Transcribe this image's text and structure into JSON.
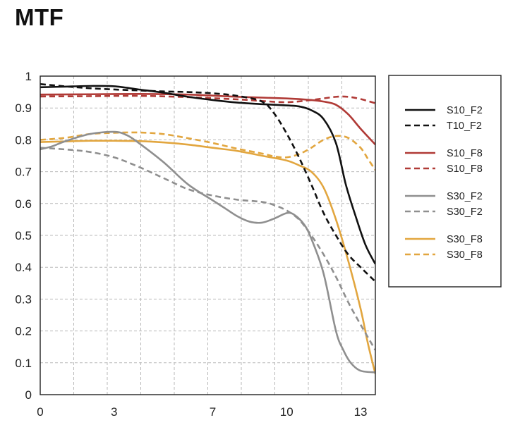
{
  "title": "MTF",
  "chart_data": {
    "type": "line",
    "title": "MTF",
    "xlabel": "",
    "ylabel": "",
    "xlim": [
      0,
      13.6
    ],
    "ylim": [
      0,
      1
    ],
    "grid": true,
    "legend_position": "right",
    "x_ticks": [
      0,
      3,
      7,
      10,
      13
    ],
    "x_tick_labels": [
      "0",
      "3",
      "7",
      "10",
      "13"
    ],
    "y_ticks": [
      0,
      0.1,
      0.2,
      0.3,
      0.4,
      0.5,
      0.6,
      0.7,
      0.8,
      0.9,
      1
    ],
    "y_tick_labels": [
      "0",
      "0.1",
      "0.2",
      "0.3",
      "0.4",
      "0.5",
      "0.6",
      "0.7",
      "0.8",
      "0.9",
      "1"
    ],
    "series": [
      {
        "name": "S10_F2",
        "color": "#111111",
        "dash": false,
        "points": [
          [
            0,
            0.965
          ],
          [
            1,
            0.967
          ],
          [
            2,
            0.969
          ],
          [
            3,
            0.968
          ],
          [
            4,
            0.958
          ],
          [
            5,
            0.948
          ],
          [
            6,
            0.935
          ],
          [
            7,
            0.925
          ],
          [
            8,
            0.917
          ],
          [
            9,
            0.912
          ],
          [
            10,
            0.908
          ],
          [
            10.5,
            0.905
          ],
          [
            11,
            0.893
          ],
          [
            11.5,
            0.865
          ],
          [
            12,
            0.79
          ],
          [
            12.4,
            0.66
          ],
          [
            12.8,
            0.56
          ],
          [
            13.2,
            0.47
          ],
          [
            13.6,
            0.41
          ]
        ]
      },
      {
        "name": "T10_F2",
        "color": "#111111",
        "dash": true,
        "points": [
          [
            0,
            0.975
          ],
          [
            1,
            0.968
          ],
          [
            2,
            0.962
          ],
          [
            3,
            0.958
          ],
          [
            4,
            0.955
          ],
          [
            5,
            0.952
          ],
          [
            6,
            0.95
          ],
          [
            7,
            0.946
          ],
          [
            8,
            0.938
          ],
          [
            9,
            0.92
          ],
          [
            9.5,
            0.882
          ],
          [
            10,
            0.82
          ],
          [
            10.5,
            0.745
          ],
          [
            11,
            0.66
          ],
          [
            11.5,
            0.57
          ],
          [
            12,
            0.5
          ],
          [
            12.5,
            0.44
          ],
          [
            13,
            0.4
          ],
          [
            13.6,
            0.355
          ]
        ]
      },
      {
        "name": "S10_F8",
        "color": "#b03a36",
        "dash": false,
        "points": [
          [
            0,
            0.942
          ],
          [
            2,
            0.943
          ],
          [
            4,
            0.944
          ],
          [
            6,
            0.942
          ],
          [
            8,
            0.935
          ],
          [
            10,
            0.93
          ],
          [
            11,
            0.925
          ],
          [
            11.5,
            0.92
          ],
          [
            12,
            0.91
          ],
          [
            12.5,
            0.88
          ],
          [
            13,
            0.835
          ],
          [
            13.6,
            0.785
          ]
        ]
      },
      {
        "name": "S10_F8",
        "color": "#b03a36",
        "dash": true,
        "points": [
          [
            0,
            0.936
          ],
          [
            2,
            0.937
          ],
          [
            4,
            0.938
          ],
          [
            6,
            0.934
          ],
          [
            8,
            0.927
          ],
          [
            9,
            0.922
          ],
          [
            10,
            0.918
          ],
          [
            11,
            0.925
          ],
          [
            12,
            0.935
          ],
          [
            12.5,
            0.935
          ],
          [
            13,
            0.928
          ],
          [
            13.6,
            0.915
          ]
        ]
      },
      {
        "name": "S30_F2",
        "color": "#8f8f8f",
        "dash": false,
        "points": [
          [
            0,
            0.77
          ],
          [
            0.5,
            0.78
          ],
          [
            1,
            0.795
          ],
          [
            2,
            0.818
          ],
          [
            3,
            0.825
          ],
          [
            3.5,
            0.815
          ],
          [
            4,
            0.79
          ],
          [
            5,
            0.73
          ],
          [
            6,
            0.66
          ],
          [
            7,
            0.61
          ],
          [
            7.5,
            0.585
          ],
          [
            8,
            0.56
          ],
          [
            8.5,
            0.543
          ],
          [
            9,
            0.54
          ],
          [
            9.5,
            0.553
          ],
          [
            10,
            0.57
          ],
          [
            10.3,
            0.565
          ],
          [
            10.7,
            0.535
          ],
          [
            11,
            0.49
          ],
          [
            11.5,
            0.38
          ],
          [
            12,
            0.2
          ],
          [
            12.3,
            0.14
          ],
          [
            12.6,
            0.1
          ],
          [
            13,
            0.075
          ],
          [
            13.6,
            0.07
          ]
        ]
      },
      {
        "name": "S30_F2",
        "color": "#8f8f8f",
        "dash": true,
        "points": [
          [
            0,
            0.775
          ],
          [
            1,
            0.77
          ],
          [
            2,
            0.762
          ],
          [
            3,
            0.745
          ],
          [
            4,
            0.715
          ],
          [
            5,
            0.68
          ],
          [
            6,
            0.645
          ],
          [
            7,
            0.625
          ],
          [
            8,
            0.612
          ],
          [
            9,
            0.605
          ],
          [
            9.5,
            0.595
          ],
          [
            10,
            0.578
          ],
          [
            10.5,
            0.55
          ],
          [
            11,
            0.5
          ],
          [
            11.5,
            0.44
          ],
          [
            12,
            0.37
          ],
          [
            12.5,
            0.29
          ],
          [
            13,
            0.22
          ],
          [
            13.6,
            0.14
          ]
        ]
      },
      {
        "name": "S30_F8",
        "color": "#e2a63f",
        "dash": false,
        "points": [
          [
            0,
            0.793
          ],
          [
            1,
            0.795
          ],
          [
            2,
            0.797
          ],
          [
            3,
            0.797
          ],
          [
            4,
            0.796
          ],
          [
            5,
            0.792
          ],
          [
            6,
            0.785
          ],
          [
            7,
            0.775
          ],
          [
            8,
            0.765
          ],
          [
            9,
            0.75
          ],
          [
            10,
            0.735
          ],
          [
            10.5,
            0.72
          ],
          [
            11,
            0.7
          ],
          [
            11.5,
            0.65
          ],
          [
            12,
            0.55
          ],
          [
            12.5,
            0.42
          ],
          [
            13,
            0.27
          ],
          [
            13.3,
            0.16
          ],
          [
            13.6,
            0.065
          ]
        ]
      },
      {
        "name": "S30_F8",
        "color": "#e2a63f",
        "dash": true,
        "points": [
          [
            0,
            0.8
          ],
          [
            1,
            0.806
          ],
          [
            2,
            0.818
          ],
          [
            3,
            0.822
          ],
          [
            4,
            0.823
          ],
          [
            5,
            0.818
          ],
          [
            6,
            0.805
          ],
          [
            7,
            0.79
          ],
          [
            8,
            0.772
          ],
          [
            9,
            0.757
          ],
          [
            9.5,
            0.748
          ],
          [
            10,
            0.745
          ],
          [
            10.5,
            0.755
          ],
          [
            11,
            0.775
          ],
          [
            11.5,
            0.8
          ],
          [
            12,
            0.812
          ],
          [
            12.5,
            0.806
          ],
          [
            13,
            0.775
          ],
          [
            13.3,
            0.74
          ],
          [
            13.6,
            0.705
          ]
        ]
      }
    ]
  }
}
